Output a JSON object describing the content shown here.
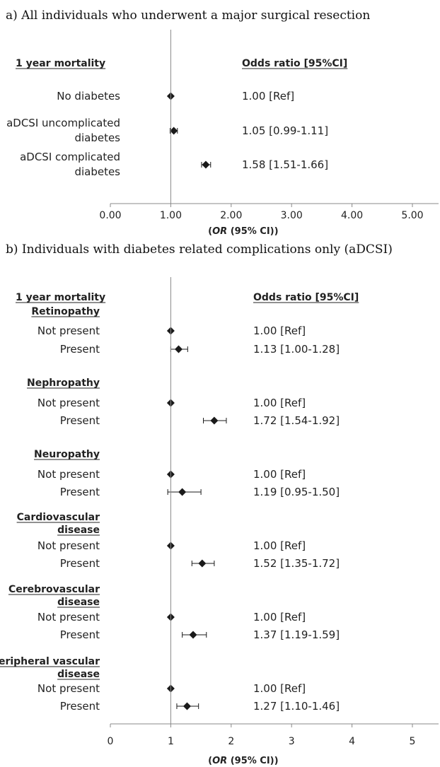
{
  "chart_data": [
    {
      "type": "forest",
      "title": "a)   All individuals who underwent a major surgical resection",
      "column_header_left": "1 year mortality",
      "column_header_right": "Odds ratio [95%CI]",
      "xlabel_prefix": "(",
      "xlabel_italic": "OR",
      "xlabel_suffix": " (95% CI))",
      "xlim": [
        0,
        5.5
      ],
      "xticks": [
        0,
        1,
        2,
        3,
        4,
        5
      ],
      "xtick_labels": [
        "0.00",
        "1.00",
        "2.00",
        "3.00",
        "4.00",
        "5.00"
      ],
      "reference_line": 1,
      "rows": [
        {
          "label": [
            "No diabetes"
          ],
          "or": 1.0,
          "lo": 1.0,
          "hi": 1.0,
          "text": "1.00 [Ref]"
        },
        {
          "label": [
            "aDCSI uncomplicated",
            "diabetes"
          ],
          "or": 1.05,
          "lo": 0.99,
          "hi": 1.11,
          "text": "1.05 [0.99-1.11]"
        },
        {
          "label": [
            "aDCSI complicated",
            "diabetes"
          ],
          "or": 1.58,
          "lo": 1.51,
          "hi": 1.66,
          "text": "1.58 [1.51-1.66]"
        }
      ]
    },
    {
      "type": "forest",
      "title": "b)   Individuals with diabetes related complications only (aDCSI)",
      "column_header_left": "1 year mortality",
      "column_header_right": "Odds ratio [95%CI]",
      "xlabel_prefix": "(",
      "xlabel_italic": "OR",
      "xlabel_suffix": " (95% CI))",
      "xlim": [
        0,
        5.5
      ],
      "xticks": [
        0,
        1,
        2,
        3,
        4,
        5
      ],
      "xtick_labels": [
        "0",
        "1",
        "2",
        "3",
        "4",
        "5"
      ],
      "reference_line": 1,
      "groups": [
        {
          "name": [
            "Retinopathy"
          ],
          "rows": [
            {
              "label": "Not present",
              "or": 1.0,
              "lo": 1.0,
              "hi": 1.0,
              "text": "1.00 [Ref]"
            },
            {
              "label": "Present",
              "or": 1.13,
              "lo": 1.0,
              "hi": 1.28,
              "text": "1.13 [1.00-1.28]"
            }
          ]
        },
        {
          "name": [
            "Nephropathy"
          ],
          "rows": [
            {
              "label": "Not present",
              "or": 1.0,
              "lo": 1.0,
              "hi": 1.0,
              "text": "1.00 [Ref]"
            },
            {
              "label": "Present",
              "or": 1.72,
              "lo": 1.54,
              "hi": 1.92,
              "text": "1.72 [1.54-1.92]"
            }
          ]
        },
        {
          "name": [
            "Neuropathy"
          ],
          "rows": [
            {
              "label": "Not present",
              "or": 1.0,
              "lo": 1.0,
              "hi": 1.0,
              "text": "1.00 [Ref]"
            },
            {
              "label": "Present",
              "or": 1.19,
              "lo": 0.95,
              "hi": 1.5,
              "text": "1.19 [0.95-1.50]"
            }
          ]
        },
        {
          "name": [
            "Cardiovascular",
            "disease"
          ],
          "rows": [
            {
              "label": "Not present",
              "or": 1.0,
              "lo": 1.0,
              "hi": 1.0,
              "text": "1.00 [Ref]"
            },
            {
              "label": "Present",
              "or": 1.52,
              "lo": 1.35,
              "hi": 1.72,
              "text": "1.52 [1.35-1.72]"
            }
          ]
        },
        {
          "name": [
            "Cerebrovascular",
            "disease"
          ],
          "rows": [
            {
              "label": "Not present",
              "or": 1.0,
              "lo": 1.0,
              "hi": 1.0,
              "text": "1.00 [Ref]"
            },
            {
              "label": "Present",
              "or": 1.37,
              "lo": 1.19,
              "hi": 1.59,
              "text": "1.37 [1.19-1.59]"
            }
          ]
        },
        {
          "name": [
            "Peripheral vascular",
            "disease"
          ],
          "rows": [
            {
              "label": "Not present",
              "or": 1.0,
              "lo": 1.0,
              "hi": 1.0,
              "text": "1.00 [Ref]"
            },
            {
              "label": "Present",
              "or": 1.27,
              "lo": 1.1,
              "hi": 1.46,
              "text": "1.27 [1.10-1.46]"
            }
          ]
        }
      ]
    }
  ]
}
